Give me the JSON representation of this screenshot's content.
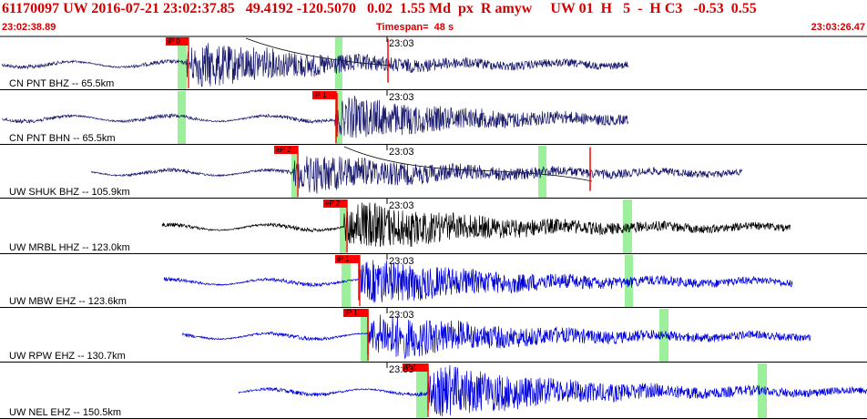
{
  "header": {
    "title": "61170097 UW 2016-07-21 23:02:37.85   49.4192 -120.5070   0.02  1.55 Md  px  R amyw     UW 01  H   5  -  H C3   -0.53  0.55",
    "start_time": "23:02:38.89",
    "timespan": "Timespan=  48 s",
    "end_time": "23:03:26.47"
  },
  "colors": {
    "header_red": "#d40000",
    "trace_navy": "#1a1a6e",
    "trace_black": "#000000",
    "trace_blue": "#0000dd",
    "window_green": "#9cf09c",
    "pick_red": "#ff0000"
  },
  "panels": [
    {
      "label": "CN PNT BHZ -- 65.5km",
      "pick": "iP 0",
      "tick": "23:03",
      "trace_color": "navy"
    },
    {
      "label": "CN PNT BHN -- 65.5km",
      "pick": "iP 1",
      "tick": "23:03",
      "trace_color": "navy"
    },
    {
      "label": "UW SHUK BHZ -- 105.9km",
      "pick": "eP 2",
      "tick": "23:03",
      "trace_color": "navy"
    },
    {
      "label": "UW MRBL HHZ -- 123.0km",
      "pick": "eP 2",
      "tick": "23:03",
      "trace_color": "black"
    },
    {
      "label": "UW MBW EHZ -- 123.6km",
      "pick": "iP 1",
      "tick": "23:03",
      "trace_color": "blue"
    },
    {
      "label": "UW RPW EHZ -- 130.7km",
      "pick": "iP 1",
      "tick": "23:03",
      "trace_color": "blue"
    },
    {
      "label": "UW NEL EHZ -- 150.5km",
      "pick": "iP 1",
      "tick": "23:03",
      "trace_color": "blue"
    }
  ]
}
